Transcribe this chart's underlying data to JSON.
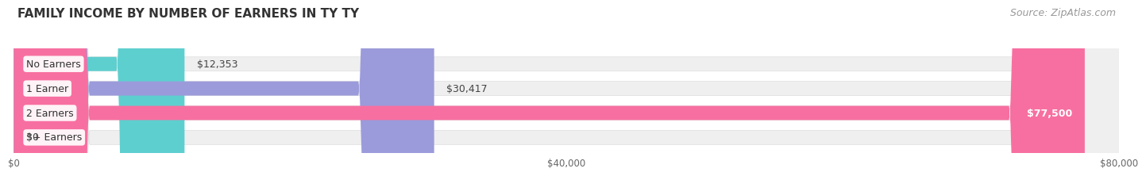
{
  "title": "FAMILY INCOME BY NUMBER OF EARNERS IN TY TY",
  "source": "Source: ZipAtlas.com",
  "categories": [
    "No Earners",
    "1 Earner",
    "2 Earners",
    "3+ Earners"
  ],
  "values": [
    12353,
    30417,
    77500,
    0
  ],
  "bar_colors": [
    "#5ecfcf",
    "#9b9bdb",
    "#f76fa0",
    "#f5d49a"
  ],
  "bar_bg_color": "#efefef",
  "xlim_max": 80000,
  "xticks": [
    0,
    40000,
    80000
  ],
  "xtick_labels": [
    "$0",
    "$40,000",
    "$80,000"
  ],
  "title_fontsize": 11,
  "source_fontsize": 9,
  "label_fontsize": 9,
  "value_labels": [
    "$12,353",
    "$30,417",
    "$77,500",
    "$0"
  ],
  "fig_bg_color": "#ffffff",
  "bar_height": 0.58
}
